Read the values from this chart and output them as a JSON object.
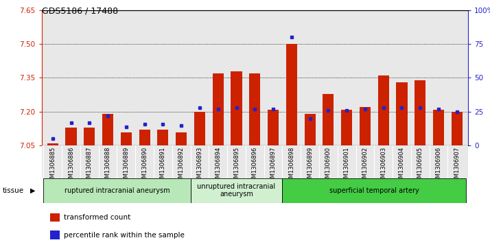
{
  "title": "GDS5186 / 17488",
  "samples": [
    "GSM1306885",
    "GSM1306886",
    "GSM1306887",
    "GSM1306888",
    "GSM1306889",
    "GSM1306890",
    "GSM1306891",
    "GSM1306892",
    "GSM1306893",
    "GSM1306894",
    "GSM1306895",
    "GSM1306896",
    "GSM1306897",
    "GSM1306898",
    "GSM1306899",
    "GSM1306900",
    "GSM1306901",
    "GSM1306902",
    "GSM1306903",
    "GSM1306904",
    "GSM1306905",
    "GSM1306906",
    "GSM1306907"
  ],
  "transformed_count": [
    7.06,
    7.13,
    7.13,
    7.19,
    7.11,
    7.12,
    7.12,
    7.11,
    7.2,
    7.37,
    7.38,
    7.37,
    7.21,
    7.5,
    7.19,
    7.28,
    7.21,
    7.22,
    7.36,
    7.33,
    7.34,
    7.21,
    7.2
  ],
  "percentile_rank": [
    5,
    17,
    17,
    22,
    14,
    16,
    16,
    15,
    28,
    27,
    28,
    27,
    27,
    80,
    20,
    26,
    26,
    27,
    28,
    28,
    28,
    27,
    25
  ],
  "groups": [
    {
      "label": "ruptured intracranial aneurysm",
      "start": 0,
      "end": 8,
      "color": "#b8e8b8"
    },
    {
      "label": "unruptured intracranial\naneurysm",
      "start": 8,
      "end": 13,
      "color": "#d0f0d0"
    },
    {
      "label": "superficial temporal artery",
      "start": 13,
      "end": 23,
      "color": "#44cc44"
    }
  ],
  "ylim_left": [
    7.05,
    7.65
  ],
  "ylim_right": [
    0,
    100
  ],
  "yticks_left": [
    7.05,
    7.2,
    7.35,
    7.5,
    7.65
  ],
  "yticks_right": [
    0,
    25,
    50,
    75,
    100
  ],
  "bar_color": "#cc2200",
  "dot_color": "#2222cc",
  "bg_color": "#e8e8e8",
  "tissue_label": "tissue",
  "legend_items": [
    "transformed count",
    "percentile rank within the sample"
  ]
}
